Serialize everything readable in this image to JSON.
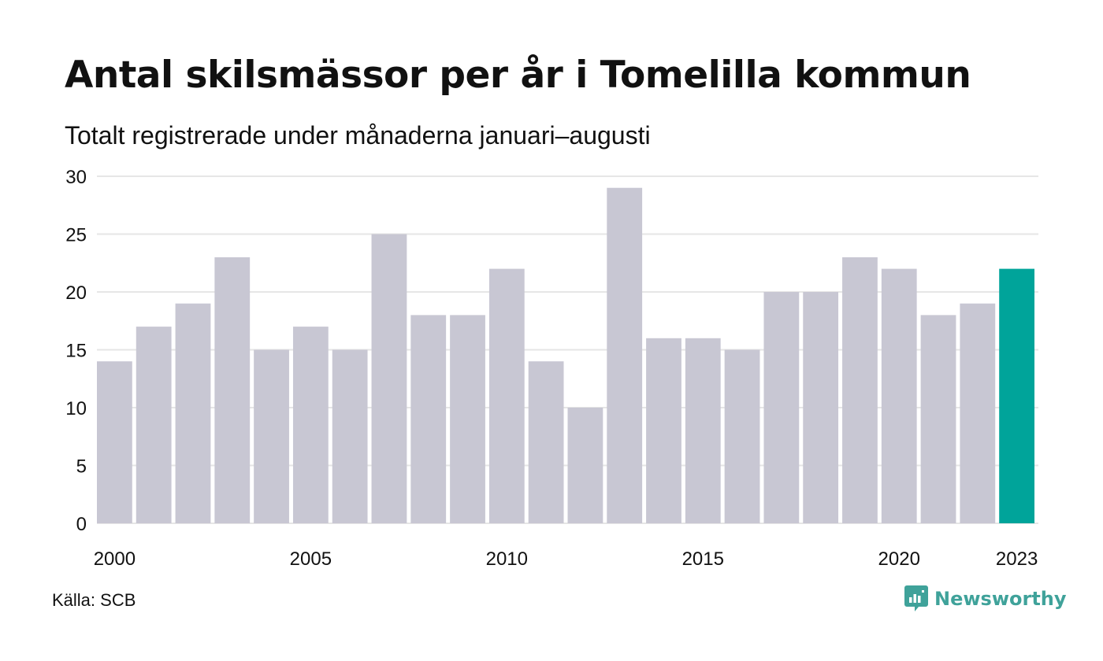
{
  "header": {
    "title": "Antal skilsmässor per år i Tomelilla kommun",
    "subtitle": "Totalt registrerade under månaderna januari–augusti"
  },
  "footer": {
    "source": "Källa: SCB",
    "brand": "Newsworthy",
    "brand_icon": "newsworthy-logo-icon"
  },
  "colors": {
    "bar": "#c8c7d3",
    "highlight": "#00a49a",
    "grid": "#e6e6e6",
    "brand": "#3fa29a"
  },
  "chart_data": {
    "type": "bar",
    "title": "Antal skilsmässor per år i Tomelilla kommun",
    "subtitle": "Totalt registrerade under månaderna januari–augusti",
    "categories": [
      2000,
      2001,
      2002,
      2003,
      2004,
      2005,
      2006,
      2007,
      2008,
      2009,
      2010,
      2011,
      2012,
      2013,
      2014,
      2015,
      2016,
      2017,
      2018,
      2019,
      2020,
      2021,
      2022,
      2023
    ],
    "values": [
      14,
      17,
      19,
      23,
      15,
      17,
      15,
      25,
      18,
      18,
      22,
      14,
      10,
      29,
      16,
      16,
      15,
      20,
      20,
      23,
      22,
      18,
      19,
      22
    ],
    "highlight_category": 2023,
    "x_tick_labels": [
      "2000",
      "2005",
      "2010",
      "2015",
      "2020",
      "2023"
    ],
    "y_ticks": [
      0,
      5,
      10,
      15,
      20,
      25,
      30
    ],
    "ylim": [
      0,
      30
    ],
    "xlabel": "",
    "ylabel": "",
    "grid": true,
    "legend": "none"
  }
}
